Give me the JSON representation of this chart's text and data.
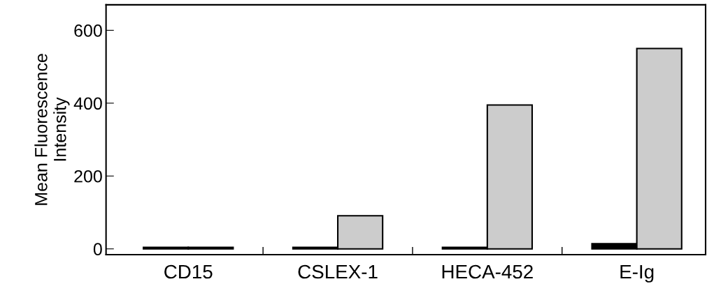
{
  "chart_data": {
    "type": "bar",
    "ylabel": "Mean Fluorescence\nIntensity",
    "categories": [
      "CD15",
      "CSLEX-1",
      "HECA-452",
      "E-Ig"
    ],
    "series": [
      {
        "color": "#000000",
        "values": [
          4,
          4,
          4,
          14
        ]
      },
      {
        "color": "#cccccc",
        "values": [
          4,
          91,
          395,
          550
        ]
      }
    ],
    "ylim": [
      -16,
      670
    ],
    "yticks": [
      0,
      200,
      400,
      600
    ],
    "grid": false,
    "legend": false
  }
}
